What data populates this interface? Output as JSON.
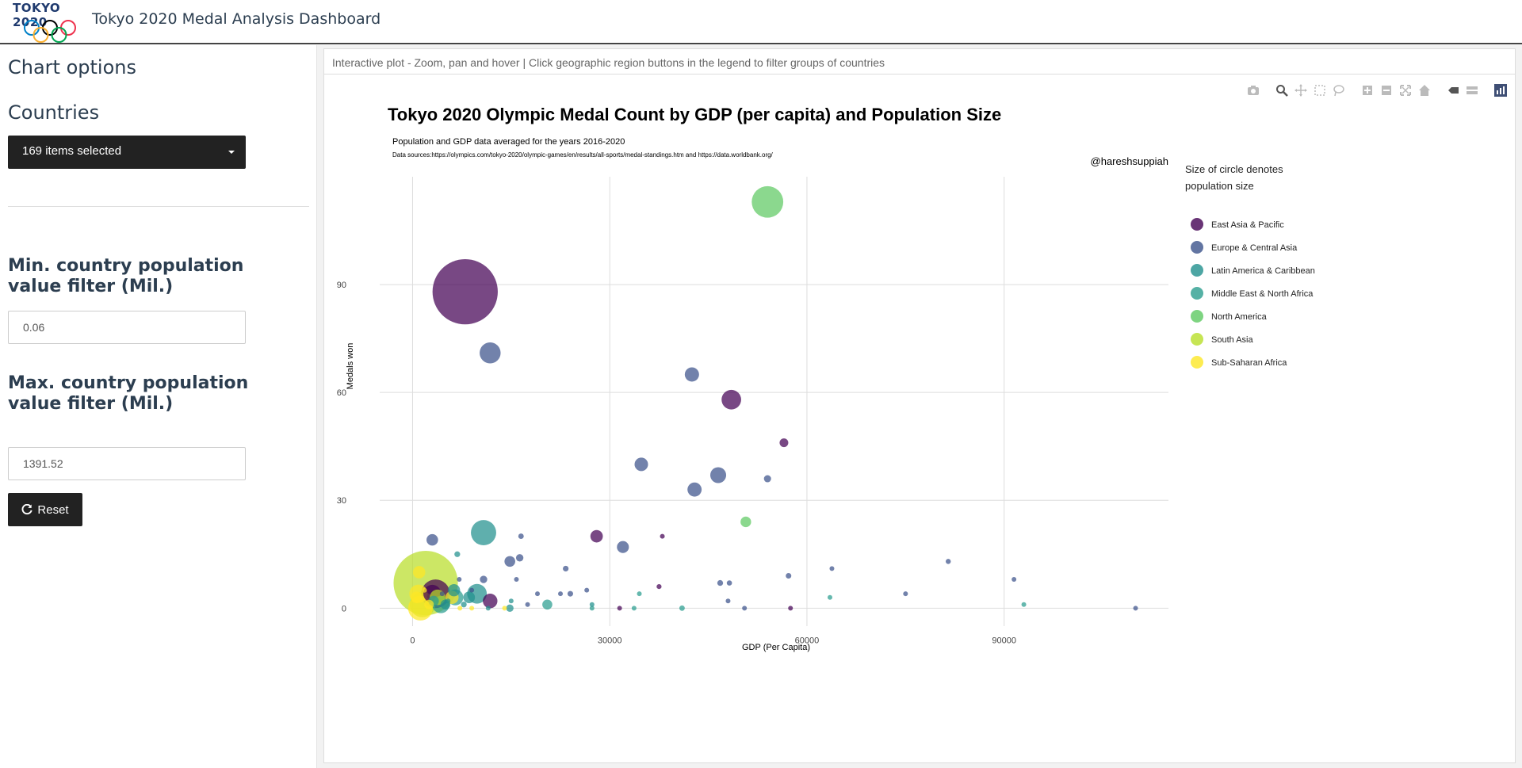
{
  "header": {
    "logo_text": "TOKYO 2020",
    "title": "Tokyo 2020 Medal Analysis Dashboard"
  },
  "sidebar": {
    "chart_options_heading": "Chart options",
    "countries_heading": "Countries",
    "countries_select_value": "169 items selected",
    "min_label": "Min. country population value filter (Mil.)",
    "min_value": "0.06",
    "max_label": "Max. country population value filter (Mil.)",
    "max_value": "1391.52",
    "reset_label": "Reset"
  },
  "main": {
    "info_text": "Interactive plot - Zoom, pan and hover | Click geographic region buttons in the legend to filter groups of countries",
    "modebar_icons": [
      "camera-icon",
      "zoom-icon",
      "pan-icon",
      "box-select-icon",
      "lasso-select-icon",
      "zoom-in-icon",
      "zoom-out-icon",
      "autoscale-icon",
      "reset-axes-icon",
      "spike-lines-icon",
      "compare-hover-icon",
      "plotly-logo-icon"
    ]
  },
  "chart_data": {
    "type": "scatter",
    "title": "Tokyo 2020 Olympic Medal Count by GDP (per capita) and Population Size",
    "subtitle": "Population and GDP data averaged for the years 2016-2020",
    "source": "Data sources:https://olympics.com/tokyo-2020/olympic-games/en/results/all-sports/medal-standings.htm and https://data.worldbank.org/",
    "annotation": "@hareshsuppiah",
    "xlabel": "GDP (Per Capita)",
    "ylabel": "Medals won",
    "xlim": [
      -5000,
      115000
    ],
    "ylim": [
      -5,
      120
    ],
    "xticks": [
      0,
      30000,
      60000,
      90000
    ],
    "yticks": [
      0,
      30,
      60,
      90
    ],
    "grid": true,
    "legend_title": "Size of circle denotes population size",
    "legend_position": "right",
    "series": [
      {
        "name": "East Asia & Pacific",
        "color": "#440154",
        "points": [
          {
            "x": 8000,
            "y": 88,
            "pop": 1400
          },
          {
            "x": 48500,
            "y": 58,
            "pop": 126
          },
          {
            "x": 56500,
            "y": 46,
            "pop": 25
          },
          {
            "x": 28000,
            "y": 20,
            "pop": 51
          },
          {
            "x": 38000,
            "y": 20,
            "pop": 5
          },
          {
            "x": 11800,
            "y": 2,
            "pop": 70
          },
          {
            "x": 3500,
            "y": 4,
            "pop": 270
          },
          {
            "x": 37500,
            "y": 6,
            "pop": 8
          },
          {
            "x": 57500,
            "y": 0,
            "pop": 5.7
          },
          {
            "x": 3000,
            "y": 4,
            "pop": 105
          },
          {
            "x": 31500,
            "y": 0,
            "pop": 2
          }
        ]
      },
      {
        "name": "Europe & Central Asia",
        "color": "#3b528b",
        "points": [
          {
            "x": 11800,
            "y": 71,
            "pop": 145
          },
          {
            "x": 42500,
            "y": 65,
            "pop": 67
          },
          {
            "x": 34800,
            "y": 40,
            "pop": 60
          },
          {
            "x": 46500,
            "y": 37,
            "pop": 83
          },
          {
            "x": 42900,
            "y": 33,
            "pop": 66
          },
          {
            "x": 54000,
            "y": 36,
            "pop": 17
          },
          {
            "x": 32000,
            "y": 17,
            "pop": 47
          },
          {
            "x": 14800,
            "y": 13,
            "pop": 38
          },
          {
            "x": 16300,
            "y": 14,
            "pop": 18
          },
          {
            "x": 3000,
            "y": 19,
            "pop": 44
          },
          {
            "x": 81500,
            "y": 13,
            "pop": 8.6
          },
          {
            "x": 91500,
            "y": 8,
            "pop": 5.4
          },
          {
            "x": 63800,
            "y": 11,
            "pop": 5.4
          },
          {
            "x": 75000,
            "y": 4,
            "pop": 5.3
          },
          {
            "x": 57200,
            "y": 9,
            "pop": 10.3
          },
          {
            "x": 48200,
            "y": 7,
            "pop": 9
          },
          {
            "x": 46800,
            "y": 7,
            "pop": 11
          },
          {
            "x": 23300,
            "y": 11,
            "pop": 10.7
          },
          {
            "x": 16500,
            "y": 20,
            "pop": 9.8
          },
          {
            "x": 10800,
            "y": 8,
            "pop": 18
          },
          {
            "x": 7100,
            "y": 8,
            "pop": 3
          },
          {
            "x": 9000,
            "y": 5,
            "pop": 6.9
          },
          {
            "x": 24000,
            "y": 4,
            "pop": 10.3
          },
          {
            "x": 22500,
            "y": 4,
            "pop": 5.4
          },
          {
            "x": 15800,
            "y": 8,
            "pop": 2.8
          },
          {
            "x": 19000,
            "y": 4,
            "pop": 1.9
          },
          {
            "x": 4500,
            "y": 4,
            "pop": 3.7
          },
          {
            "x": 48000,
            "y": 2,
            "pop": 4.9
          },
          {
            "x": 110000,
            "y": 0,
            "pop": 0.6
          },
          {
            "x": 26500,
            "y": 5,
            "pop": 2.1
          },
          {
            "x": 17500,
            "y": 1,
            "pop": 4.1
          },
          {
            "x": 50500,
            "y": 0,
            "pop": 0.4
          }
        ]
      },
      {
        "name": "Latin America & Caribbean",
        "color": "#21908d",
        "points": [
          {
            "x": 10800,
            "y": 21,
            "pop": 210
          },
          {
            "x": 9800,
            "y": 4,
            "pop": 127
          },
          {
            "x": 6800,
            "y": 15,
            "pop": 11
          },
          {
            "x": 6300,
            "y": 5,
            "pop": 49
          },
          {
            "x": 14800,
            "y": 0,
            "pop": 18
          },
          {
            "x": 8600,
            "y": 3,
            "pop": 45
          },
          {
            "x": 5000,
            "y": 1,
            "pop": 32
          },
          {
            "x": 15000,
            "y": 2,
            "pop": 3.4
          },
          {
            "x": 7800,
            "y": 1,
            "pop": 10.7
          },
          {
            "x": 5400,
            "y": 2,
            "pop": 2.9
          },
          {
            "x": 11500,
            "y": 0,
            "pop": 4.9
          },
          {
            "x": 27300,
            "y": 1,
            "pop": 1.4
          }
        ]
      },
      {
        "name": "Middle East & North Africa",
        "color": "#2a9d8f",
        "points": [
          {
            "x": 20500,
            "y": 1,
            "pop": 33
          },
          {
            "x": 34500,
            "y": 4,
            "pop": 2.7
          },
          {
            "x": 63500,
            "y": 3,
            "pop": 2.8
          },
          {
            "x": 41000,
            "y": 0,
            "pop": 9.8
          },
          {
            "x": 93000,
            "y": 1,
            "pop": 0.3
          },
          {
            "x": 4300,
            "y": 1,
            "pop": 98
          },
          {
            "x": 6500,
            "y": 3,
            "pop": 84
          },
          {
            "x": 3200,
            "y": 2,
            "pop": 36
          },
          {
            "x": 27300,
            "y": 0,
            "pop": 4.6
          },
          {
            "x": 33700,
            "y": 0,
            "pop": 4.3
          }
        ]
      },
      {
        "name": "North America",
        "color": "#5ec962",
        "points": [
          {
            "x": 54000,
            "y": 113,
            "pop": 327
          },
          {
            "x": 50700,
            "y": 24,
            "pop": 37
          }
        ]
      },
      {
        "name": "South Asia",
        "color": "#b8de29",
        "points": [
          {
            "x": 2000,
            "y": 7,
            "pop": 1360
          },
          {
            "x": 1500,
            "y": 1,
            "pop": 212
          },
          {
            "x": 3800,
            "y": 3,
            "pop": 80
          }
        ]
      },
      {
        "name": "Sub-Saharan Africa",
        "color": "#fde725",
        "points": [
          {
            "x": 1000,
            "y": 10,
            "pop": 50
          },
          {
            "x": 900,
            "y": 4,
            "pop": 110
          },
          {
            "x": 1200,
            "y": 0,
            "pop": 200
          },
          {
            "x": 600,
            "y": 3,
            "pop": 45
          },
          {
            "x": 6000,
            "y": 3,
            "pop": 57
          },
          {
            "x": 2500,
            "y": 1,
            "pop": 30
          },
          {
            "x": 1800,
            "y": 5,
            "pop": 8
          },
          {
            "x": 9000,
            "y": 0,
            "pop": 2.3
          },
          {
            "x": 7200,
            "y": 0,
            "pop": 1.3
          },
          {
            "x": 14000,
            "y": 0,
            "pop": 0.1
          }
        ]
      }
    ]
  }
}
